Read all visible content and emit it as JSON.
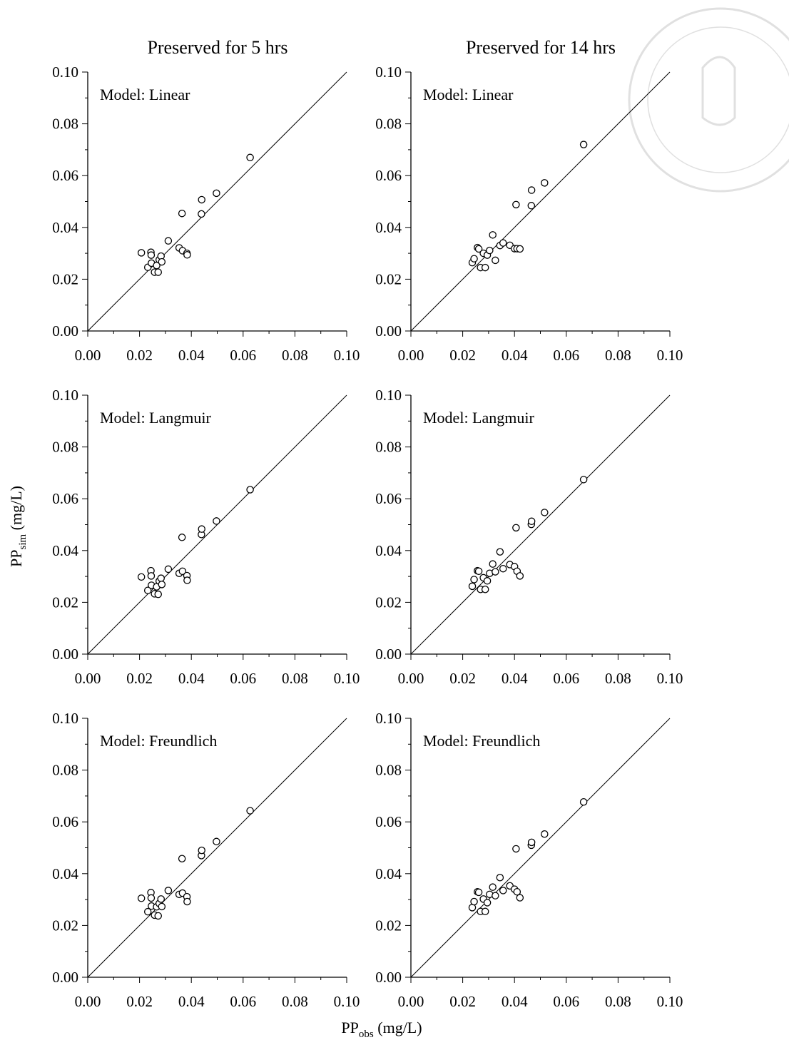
{
  "figure": {
    "col_titles": [
      "Preserved for 5 hrs",
      "Preserved for 14 hrs"
    ],
    "ylabel": {
      "main": "PP",
      "sub": "sim",
      "unit": " (mg/L)"
    },
    "xlabel": {
      "main": "PP",
      "sub": "obs",
      "unit": " (mg/L)"
    }
  },
  "chart_data": [
    {
      "type": "scatter",
      "title": "Model: Linear",
      "preserved": "Preserved for 5 hrs",
      "xlim": [
        0,
        0.1
      ],
      "ylim": [
        0,
        0.1
      ],
      "xticks": [
        "0.00",
        "0.02",
        "0.04",
        "0.06",
        "0.08",
        "0.10"
      ],
      "yticks": [
        "0.00",
        "0.02",
        "0.04",
        "0.06",
        "0.08",
        "0.10"
      ],
      "reference_line": "1:1",
      "points": [
        [
          0.0207,
          0.0302
        ],
        [
          0.0232,
          0.0246
        ],
        [
          0.0244,
          0.0304
        ],
        [
          0.0245,
          0.0293
        ],
        [
          0.0246,
          0.0262
        ],
        [
          0.0258,
          0.0227
        ],
        [
          0.0266,
          0.0253
        ],
        [
          0.0272,
          0.0227
        ],
        [
          0.0276,
          0.0275
        ],
        [
          0.0283,
          0.0289
        ],
        [
          0.0286,
          0.0267
        ],
        [
          0.0311,
          0.0348
        ],
        [
          0.0353,
          0.0321
        ],
        [
          0.0364,
          0.0454
        ],
        [
          0.0366,
          0.031
        ],
        [
          0.0383,
          0.03
        ],
        [
          0.0384,
          0.0294
        ],
        [
          0.0439,
          0.0452
        ],
        [
          0.044,
          0.0507
        ],
        [
          0.0497,
          0.0532
        ],
        [
          0.0627,
          0.067
        ]
      ]
    },
    {
      "type": "scatter",
      "title": "Model: Linear",
      "preserved": "Preserved for 14 hrs",
      "xlim": [
        0,
        0.1
      ],
      "ylim": [
        0,
        0.1
      ],
      "xticks": [
        "0.00",
        "0.02",
        "0.04",
        "0.06",
        "0.08",
        "0.10"
      ],
      "yticks": [
        "0.00",
        "0.02",
        "0.04",
        "0.06",
        "0.08",
        "0.10"
      ],
      "reference_line": "1:1",
      "points": [
        [
          0.0237,
          0.0264
        ],
        [
          0.0244,
          0.0279
        ],
        [
          0.0257,
          0.0322
        ],
        [
          0.0262,
          0.0317
        ],
        [
          0.0269,
          0.0245
        ],
        [
          0.028,
          0.03
        ],
        [
          0.0287,
          0.0245
        ],
        [
          0.0295,
          0.0293
        ],
        [
          0.0304,
          0.0311
        ],
        [
          0.0316,
          0.0371
        ],
        [
          0.0326,
          0.0273
        ],
        [
          0.0344,
          0.033
        ],
        [
          0.0356,
          0.034
        ],
        [
          0.0382,
          0.0331
        ],
        [
          0.04,
          0.0318
        ],
        [
          0.0406,
          0.0488
        ],
        [
          0.041,
          0.0318
        ],
        [
          0.0421,
          0.0317
        ],
        [
          0.0465,
          0.0484
        ],
        [
          0.0466,
          0.0544
        ],
        [
          0.0516,
          0.0572
        ],
        [
          0.0667,
          0.072
        ]
      ]
    },
    {
      "type": "scatter",
      "title": "Model: Langmuir",
      "preserved": "Preserved for 5 hrs",
      "xlim": [
        0,
        0.1
      ],
      "ylim": [
        0,
        0.1
      ],
      "xticks": [
        "0.00",
        "0.02",
        "0.04",
        "0.06",
        "0.08",
        "0.10"
      ],
      "yticks": [
        "0.00",
        "0.02",
        "0.04",
        "0.06",
        "0.08",
        "0.10"
      ],
      "reference_line": "1:1",
      "points": [
        [
          0.0207,
          0.0298
        ],
        [
          0.0232,
          0.0246
        ],
        [
          0.0244,
          0.0322
        ],
        [
          0.0245,
          0.0302
        ],
        [
          0.0246,
          0.0266
        ],
        [
          0.0258,
          0.0233
        ],
        [
          0.0266,
          0.026
        ],
        [
          0.0272,
          0.0231
        ],
        [
          0.0276,
          0.0282
        ],
        [
          0.0283,
          0.0293
        ],
        [
          0.0286,
          0.0269
        ],
        [
          0.0311,
          0.0328
        ],
        [
          0.0353,
          0.0312
        ],
        [
          0.0364,
          0.0451
        ],
        [
          0.0366,
          0.032
        ],
        [
          0.0383,
          0.0303
        ],
        [
          0.0384,
          0.0285
        ],
        [
          0.0439,
          0.0462
        ],
        [
          0.044,
          0.0483
        ],
        [
          0.0497,
          0.0514
        ],
        [
          0.0627,
          0.0635
        ]
      ]
    },
    {
      "type": "scatter",
      "title": "Model: Langmuir",
      "preserved": "Preserved for 14 hrs",
      "xlim": [
        0,
        0.1
      ],
      "ylim": [
        0,
        0.1
      ],
      "xticks": [
        "0.00",
        "0.02",
        "0.04",
        "0.06",
        "0.08",
        "0.10"
      ],
      "yticks": [
        "0.00",
        "0.02",
        "0.04",
        "0.06",
        "0.08",
        "0.10"
      ],
      "reference_line": "1:1",
      "points": [
        [
          0.0237,
          0.0262
        ],
        [
          0.0244,
          0.0288
        ],
        [
          0.0257,
          0.0322
        ],
        [
          0.0262,
          0.032
        ],
        [
          0.0269,
          0.025
        ],
        [
          0.028,
          0.0295
        ],
        [
          0.0287,
          0.025
        ],
        [
          0.0295,
          0.0283
        ],
        [
          0.0304,
          0.0312
        ],
        [
          0.0316,
          0.0348
        ],
        [
          0.0326,
          0.0318
        ],
        [
          0.0344,
          0.0395
        ],
        [
          0.0356,
          0.033
        ],
        [
          0.0382,
          0.0346
        ],
        [
          0.04,
          0.0338
        ],
        [
          0.0406,
          0.0488
        ],
        [
          0.041,
          0.032
        ],
        [
          0.0421,
          0.0302
        ],
        [
          0.0465,
          0.0501
        ],
        [
          0.0466,
          0.0513
        ],
        [
          0.0516,
          0.0547
        ],
        [
          0.0667,
          0.0674
        ]
      ]
    },
    {
      "type": "scatter",
      "title": "Model: Freundlich",
      "preserved": "Preserved for 5 hrs",
      "xlim": [
        0,
        0.1
      ],
      "ylim": [
        0,
        0.1
      ],
      "xticks": [
        "0.00",
        "0.02",
        "0.04",
        "0.06",
        "0.08",
        "0.10"
      ],
      "yticks": [
        "0.00",
        "0.02",
        "0.04",
        "0.06",
        "0.08",
        "0.10"
      ],
      "reference_line": "1:1",
      "points": [
        [
          0.0207,
          0.0305
        ],
        [
          0.0232,
          0.0253
        ],
        [
          0.0244,
          0.0327
        ],
        [
          0.0245,
          0.0306
        ],
        [
          0.0246,
          0.0275
        ],
        [
          0.0258,
          0.024
        ],
        [
          0.0266,
          0.0272
        ],
        [
          0.0272,
          0.0237
        ],
        [
          0.0276,
          0.0285
        ],
        [
          0.0283,
          0.0302
        ],
        [
          0.0286,
          0.0273
        ],
        [
          0.0311,
          0.0335
        ],
        [
          0.0353,
          0.032
        ],
        [
          0.0364,
          0.0458
        ],
        [
          0.0366,
          0.0325
        ],
        [
          0.0383,
          0.0311
        ],
        [
          0.0384,
          0.0292
        ],
        [
          0.0439,
          0.047
        ],
        [
          0.044,
          0.049
        ],
        [
          0.0497,
          0.0524
        ],
        [
          0.0627,
          0.0643
        ]
      ]
    },
    {
      "type": "scatter",
      "title": "Model: Freundlich",
      "preserved": "Preserved for 14 hrs",
      "xlim": [
        0,
        0.1
      ],
      "ylim": [
        0,
        0.1
      ],
      "xticks": [
        "0.00",
        "0.02",
        "0.04",
        "0.06",
        "0.08",
        "0.10"
      ],
      "yticks": [
        "0.00",
        "0.02",
        "0.04",
        "0.06",
        "0.08",
        "0.10"
      ],
      "reference_line": "1:1",
      "points": [
        [
          0.0237,
          0.0269
        ],
        [
          0.0244,
          0.0292
        ],
        [
          0.0257,
          0.033
        ],
        [
          0.0262,
          0.0328
        ],
        [
          0.0269,
          0.0254
        ],
        [
          0.028,
          0.0302
        ],
        [
          0.0287,
          0.0254
        ],
        [
          0.0295,
          0.0288
        ],
        [
          0.0304,
          0.032
        ],
        [
          0.0316,
          0.0348
        ],
        [
          0.0326,
          0.0315
        ],
        [
          0.0344,
          0.0385
        ],
        [
          0.0356,
          0.0335
        ],
        [
          0.0382,
          0.0353
        ],
        [
          0.04,
          0.034
        ],
        [
          0.0406,
          0.0496
        ],
        [
          0.041,
          0.033
        ],
        [
          0.0421,
          0.0307
        ],
        [
          0.0465,
          0.051
        ],
        [
          0.0466,
          0.0521
        ],
        [
          0.0516,
          0.0553
        ],
        [
          0.0667,
          0.0677
        ]
      ]
    }
  ]
}
